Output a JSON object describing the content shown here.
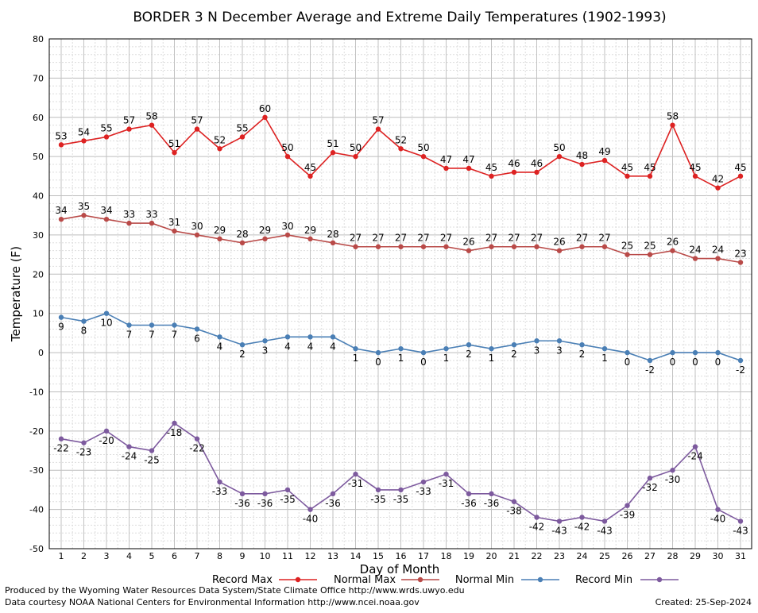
{
  "chart_data": {
    "type": "line",
    "title": "BORDER 3 N December Average and Extreme Daily Temperatures (1902-1993)",
    "xlabel": "Day of Month",
    "ylabel": "Temperature (F)",
    "xlim": [
      1,
      31
    ],
    "ylim": [
      -50,
      80
    ],
    "yticks": [
      -50,
      -40,
      -30,
      -20,
      -10,
      0,
      10,
      20,
      30,
      40,
      50,
      60,
      70,
      80
    ],
    "x": [
      1,
      2,
      3,
      4,
      5,
      6,
      7,
      8,
      9,
      10,
      11,
      12,
      13,
      14,
      15,
      16,
      17,
      18,
      19,
      20,
      21,
      22,
      23,
      24,
      25,
      26,
      27,
      28,
      29,
      30,
      31
    ],
    "grid": true,
    "legend_position": "bottom",
    "series": [
      {
        "name": "Record Max",
        "color": "#dd2222",
        "label_position": "above",
        "values": [
          53,
          54,
          55,
          57,
          58,
          51,
          57,
          52,
          55,
          60,
          50,
          45,
          51,
          50,
          57,
          52,
          50,
          47,
          47,
          45,
          46,
          46,
          50,
          48,
          49,
          45,
          45,
          58,
          45,
          42,
          45
        ]
      },
      {
        "name": "Normal Max",
        "color": "#b94a48",
        "label_position": "above",
        "values": [
          34,
          35,
          34,
          33,
          33,
          31,
          30,
          29,
          28,
          29,
          30,
          29,
          28,
          27,
          27,
          27,
          27,
          27,
          26,
          27,
          27,
          27,
          26,
          27,
          27,
          25,
          25,
          26,
          24,
          24,
          23
        ]
      },
      {
        "name": "Normal Min",
        "color": "#4a7fb5",
        "label_position": "below",
        "values": [
          9,
          8,
          10,
          7,
          7,
          7,
          6,
          4,
          2,
          3,
          4,
          4,
          4,
          1,
          0,
          1,
          0,
          1,
          2,
          1,
          2,
          3,
          3,
          2,
          1,
          0,
          -2,
          0,
          0,
          0,
          -2
        ]
      },
      {
        "name": "Record Min",
        "color": "#7d5a9e",
        "label_position": "below",
        "values": [
          -22,
          -23,
          -20,
          -24,
          -25,
          -18,
          -22,
          -33,
          -36,
          -36,
          -35,
          -40,
          -36,
          -31,
          -35,
          -35,
          -33,
          -31,
          -36,
          -36,
          -38,
          -42,
          -43,
          -42,
          -43,
          -39,
          -32,
          -30,
          -24,
          -40,
          -43
        ]
      }
    ]
  },
  "footer": {
    "produced_by": "Produced by the Wyoming Water Resources Data System/State Climate Office http://www.wrds.uwyo.edu",
    "data_courtesy": "Data courtesy NOAA National Centers for Environmental Information http://www.ncei.noaa.gov",
    "created": "Created: 25-Sep-2024"
  }
}
